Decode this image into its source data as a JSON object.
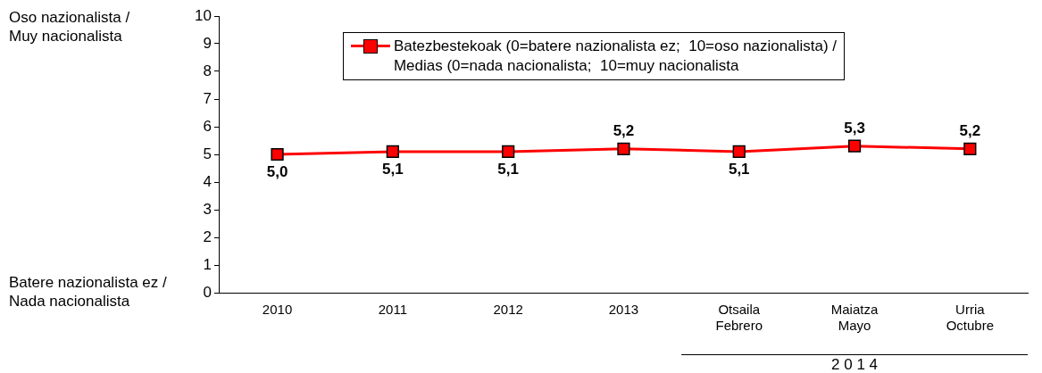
{
  "chart_data": {
    "type": "line",
    "categories": [
      "2010",
      "2011",
      "2012",
      "2013",
      "Otsaila\nFebrero",
      "Maiatza\nMayo",
      "Urria\nOctubre"
    ],
    "series": [
      {
        "name": "Batezbestekoak (0=batere nazionalista ez;  10=oso nazionalista) /\nMedias (0=nada nacionalista;  10=muy nacionalista",
        "color": "#ff0000",
        "values": [
          5.0,
          5.1,
          5.1,
          5.2,
          5.1,
          5.3,
          5.2
        ],
        "value_labels": [
          "5,0",
          "5,1",
          "5,1",
          "5,2",
          "5,1",
          "5,3",
          "5,2"
        ]
      }
    ],
    "ylim": [
      0,
      10
    ],
    "yticks": [
      0,
      1,
      2,
      3,
      4,
      5,
      6,
      7,
      8,
      9,
      10
    ],
    "annotations": [
      "Oso nazionalista /\nMuy nacionalista",
      "Batere nazionalista ez /\nNada nacionalista",
      "2 0 1 4"
    ],
    "legend": "top",
    "marker": "square",
    "line_style": "solid",
    "grid": false
  }
}
